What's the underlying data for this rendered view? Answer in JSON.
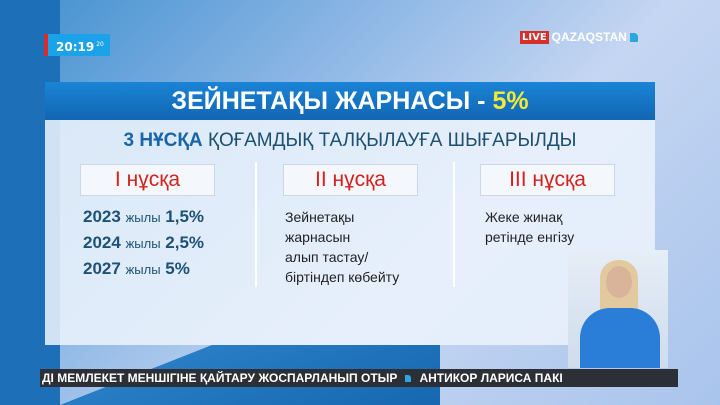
{
  "clock": {
    "time": "20:19",
    "seconds": "20"
  },
  "channel": {
    "live": "LIVE",
    "name": "QAZAQSTAN"
  },
  "panel": {
    "title": "ЗЕЙНЕТАҚЫ ЖАРНАСЫ - ",
    "title_value": "5%",
    "subtitle_bold": "3 НҰСҚА",
    "subtitle": " ҚОҒАМДЫҚ ТАЛҚЫЛАУҒА ШЫҒАРЫЛДЫ",
    "options": [
      {
        "label": "I нұсқа",
        "rows": [
          {
            "year": "2023",
            "word": "жылы",
            "value": "1,5%"
          },
          {
            "year": "2024",
            "word": "жылы",
            "value": "2,5%"
          },
          {
            "year": "2027",
            "word": "жылы",
            "value": "5%"
          }
        ]
      },
      {
        "label": "II нұсқа",
        "lines": [
          "Зейнетақы",
          "жарнасын",
          "алып тастау/",
          "біртіндеп көбейту"
        ]
      },
      {
        "label": "III нұсқа",
        "lines": [
          "Жеке жинақ",
          "ретінде енгізу"
        ]
      }
    ]
  },
  "ticker": {
    "items": [
      "ДІ МЕМЛЕКЕТ МЕНШІГІНЕ ҚАЙТАРУ ЖОСПАРЛАНЫП ОТЫР",
      "АНТИКОР ЛАРИСА ПАКІ"
    ]
  }
}
